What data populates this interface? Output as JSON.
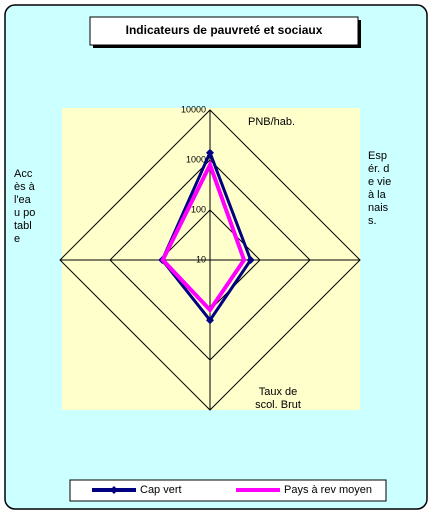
{
  "chart_data": {
    "type": "radar",
    "title": "Indicateurs de pauvreté et sociaux",
    "categories": [
      "PNB/hab.",
      "Espér. de vie à la naiss.",
      "Taux de scol. Brut",
      "Accès à l'eau potable"
    ],
    "series": [
      {
        "name": "Cap vert",
        "color": "#000080",
        "values": [
          1400,
          65,
          160,
          90
        ]
      },
      {
        "name": "Pays à rev moyen",
        "color": "#ff00ff",
        "values": [
          800,
          48,
          100,
          88
        ]
      }
    ],
    "ylim": [
      10,
      10000
    ],
    "yticks": [
      10,
      100,
      1000,
      10000
    ],
    "log_scale": true,
    "grid": true,
    "legend": "bottom"
  }
}
